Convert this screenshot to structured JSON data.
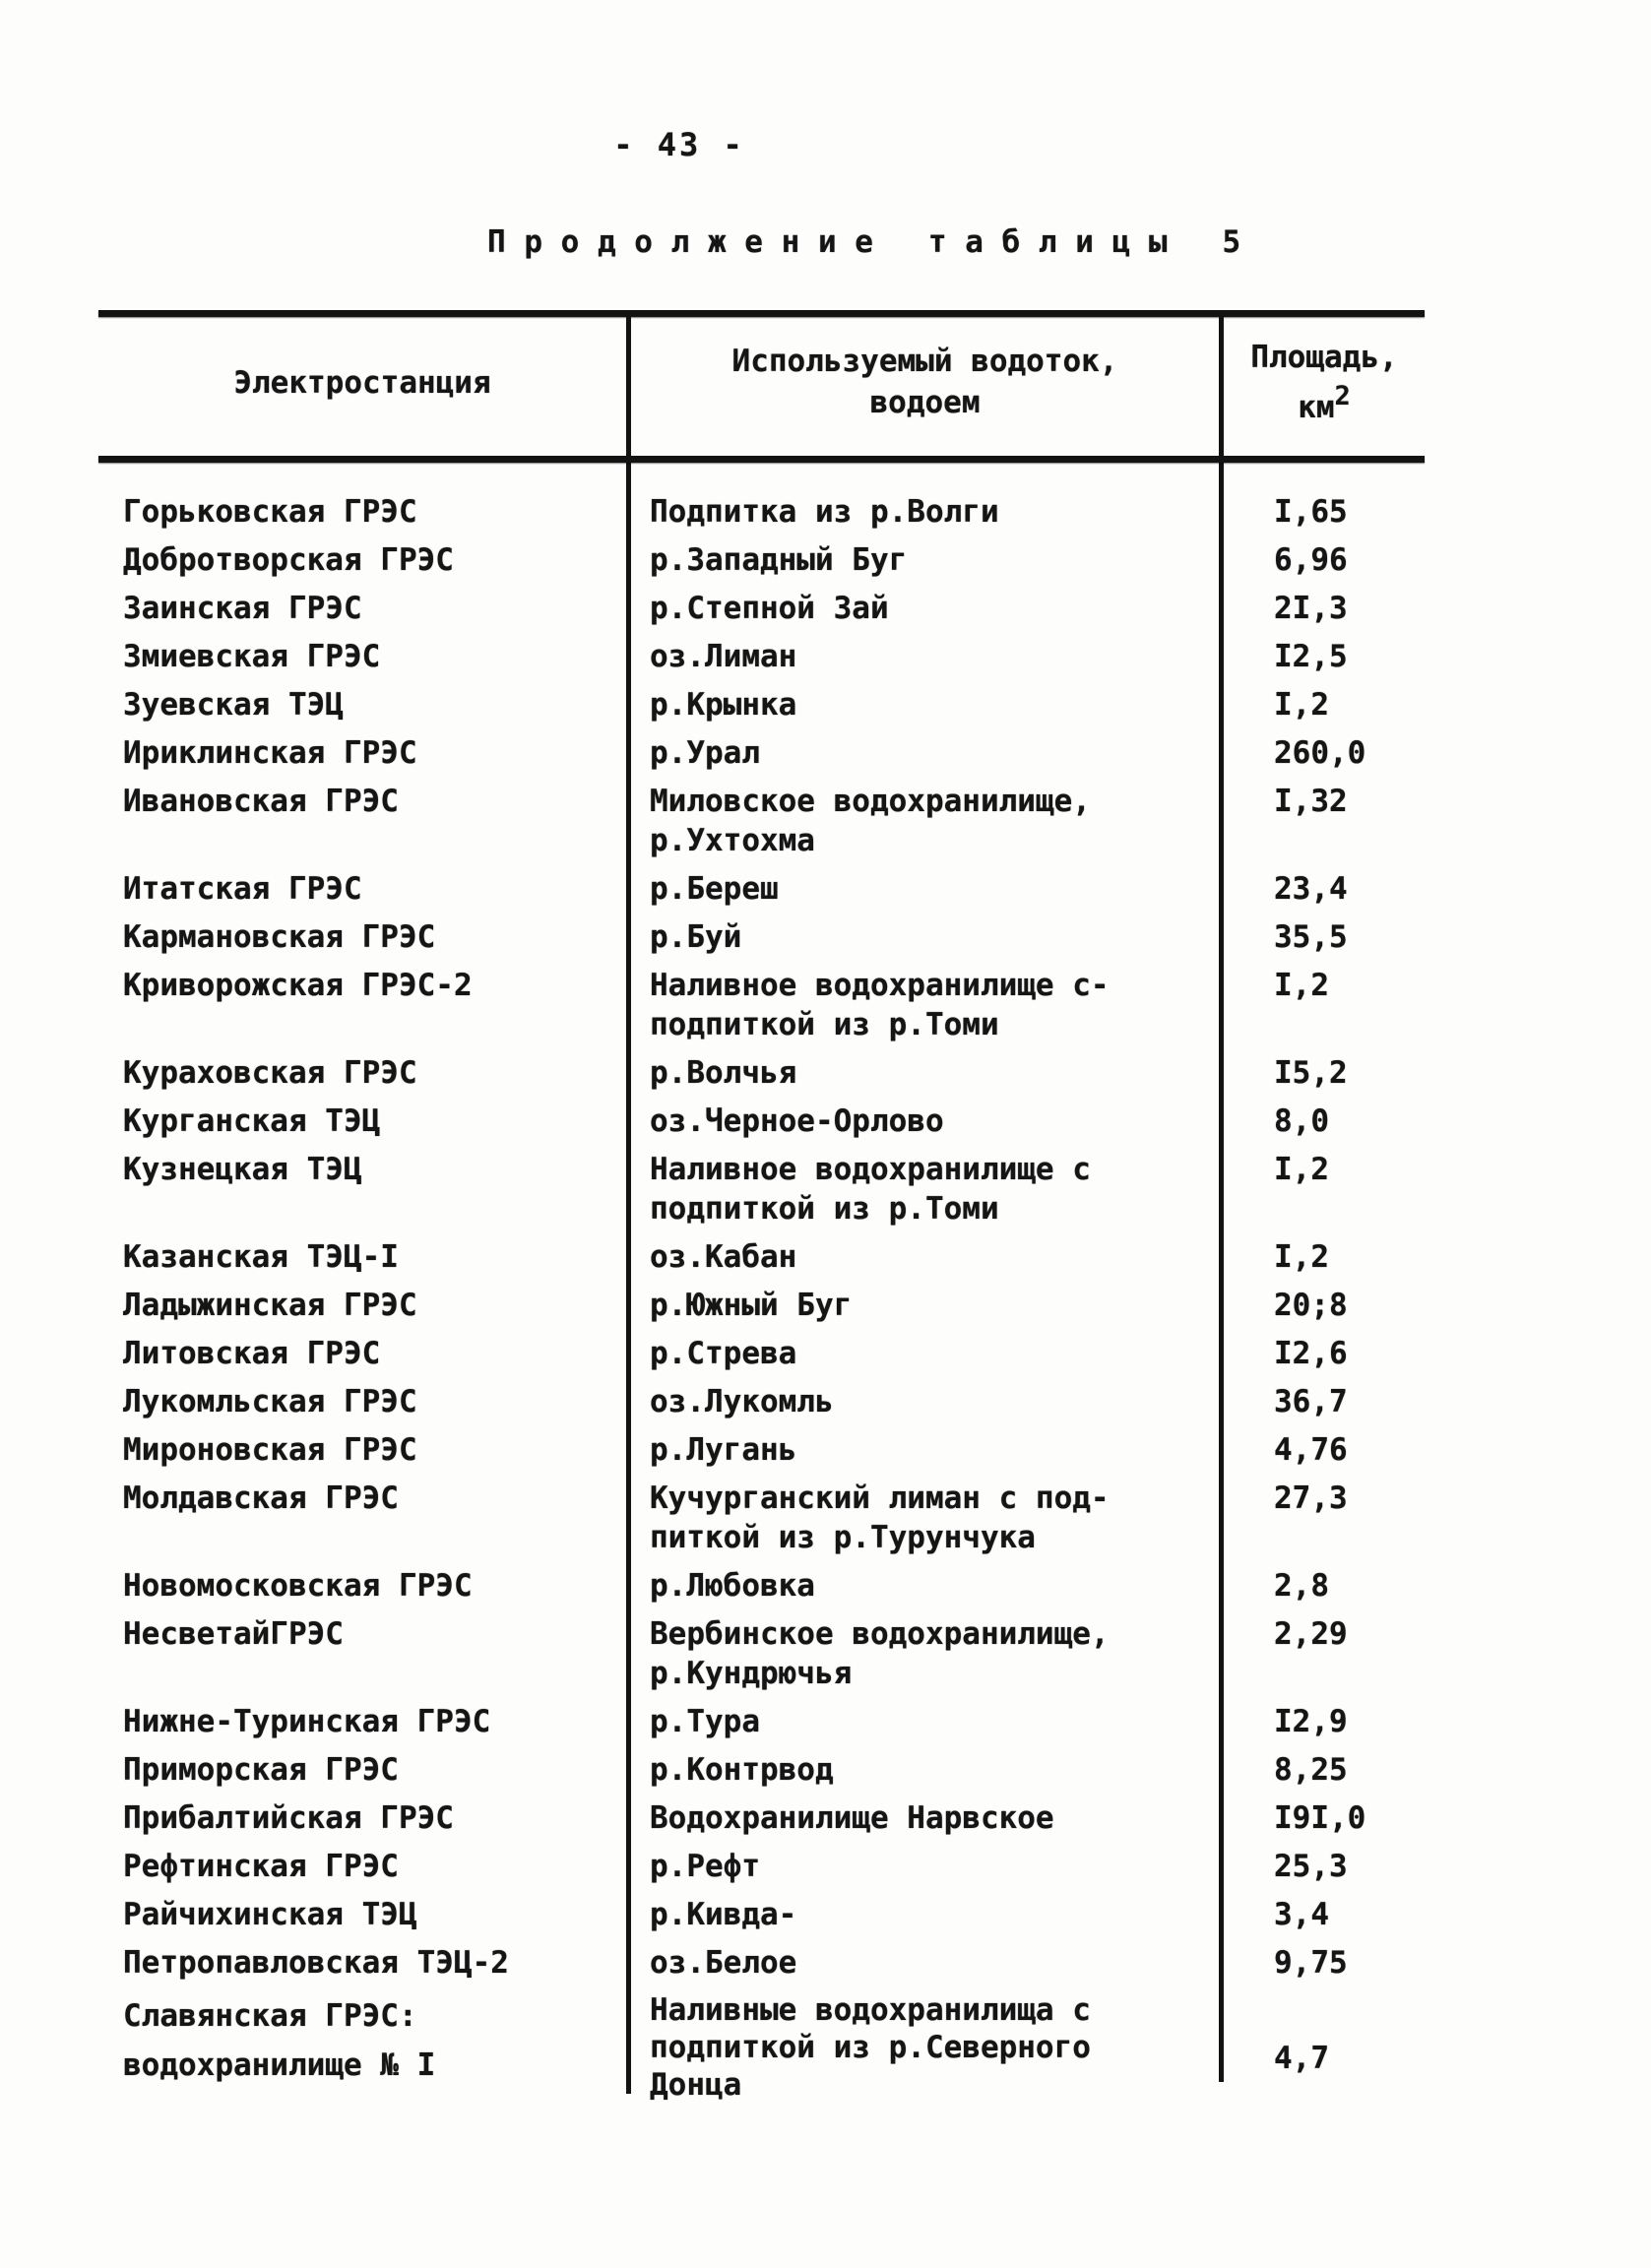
{
  "page": {
    "number": "- 43 -",
    "caption": "П р о д о л ж е н и е   т а б л и ц ы   5"
  },
  "table": {
    "headers": {
      "station": "Электростанция",
      "water": "Используемый водоток,\nводоем",
      "area_line1": "Площадь,",
      "area_unit": "км",
      "area_unit_sup": "2"
    },
    "rows": [
      {
        "station": "Горьковская ГРЭС",
        "water": "Подпитка из р.Волги",
        "area": "I,65"
      },
      {
        "station": "Добротворская ГРЭС",
        "water": "р.Западный Буг",
        "area": "6,96"
      },
      {
        "station": "Заинская ГРЭС",
        "water": "р.Степной Зай",
        "area": "2I,3"
      },
      {
        "station": "Змиевская ГРЭС",
        "water": "оз.Лиман",
        "area": "I2,5"
      },
      {
        "station": "Зуевская ТЭЦ",
        "water": "р.Крынка",
        "area": "I,2"
      },
      {
        "station": "Ириклинская ГРЭС",
        "water": "р.Урал",
        "area": "260,0"
      },
      {
        "station": "Ивановская ГРЭС",
        "water": "Миловское водохранилище,\nр.Ухтохма",
        "area": "I,32"
      },
      {
        "station": "Итатская ГРЭС",
        "water": "р.Береш",
        "area": "23,4"
      },
      {
        "station": "Кармановская ГРЭС",
        "water": "р.Буй",
        "area": "35,5"
      },
      {
        "station": "Криворожская ГРЭС-2",
        "water": "Наливное водохранилище с-\nподпиткой из р.Томи",
        "area": "I,2"
      },
      {
        "station": "Кураховская ГРЭС",
        "water": "р.Волчья",
        "area": "I5,2"
      },
      {
        "station": "Курганская ТЭЦ",
        "water": "оз.Черное-Орлово",
        "area": "8,0"
      },
      {
        "station": "Кузнецкая ТЭЦ",
        "water": "Наливное водохранилище с\nподпиткой из р.Томи",
        "area": "I,2"
      },
      {
        "station": "Казанская ТЭЦ-I",
        "water": "оз.Кабан",
        "area": "I,2"
      },
      {
        "station": "Ладыжинская ГРЭС",
        "water": "р.Южный Буг",
        "area": "20;8"
      },
      {
        "station": "Литовская ГРЭС",
        "water": "р.Стрева",
        "area": "I2,6"
      },
      {
        "station": "Лукомльская ГРЭС",
        "water": "оз.Лукомль",
        "area": "36,7"
      },
      {
        "station": "Мироновская ГРЭС",
        "water": "р.Лугань",
        "area": "4,76"
      },
      {
        "station": "Молдавская ГРЭС",
        "water": "Кучурганский лиман с под-\nпиткой из р.Турунчука",
        "area": "27,3"
      },
      {
        "station": "Новомосковская ГРЭС",
        "water": "р.Любовка",
        "area": "2,8"
      },
      {
        "station": "НесветайГРЭС",
        "water": "Вербинское водохранилище,\nр.Кундрючья",
        "area": "2,29"
      },
      {
        "station": "Нижне-Туринская ГРЭС",
        "water": "р.Тура",
        "area": "I2,9"
      },
      {
        "station": "Приморская ГРЭС",
        "water": "р.Контрвод",
        "area": "8,25"
      },
      {
        "station": "Прибалтийская ГРЭС",
        "water": "Водохранилище Нарвское",
        "area": "I9I,0"
      },
      {
        "station": "Рефтинская ГРЭС",
        "water": "р.Рефт",
        "area": "25,3"
      },
      {
        "station": "Райчихинская ТЭЦ",
        "water": "р.Кивда-",
        "area": "3,4"
      },
      {
        "station": "Петропавловская ТЭЦ-2",
        "water": "оз.Белое",
        "area": "9,75"
      },
      {
        "station": "Славянская  ГРЭС:\nводохранилище № I",
        "water": "Наливные водохранилища с\nподпиткой из р.Северного\nДонца",
        "area": "4,7"
      }
    ]
  }
}
